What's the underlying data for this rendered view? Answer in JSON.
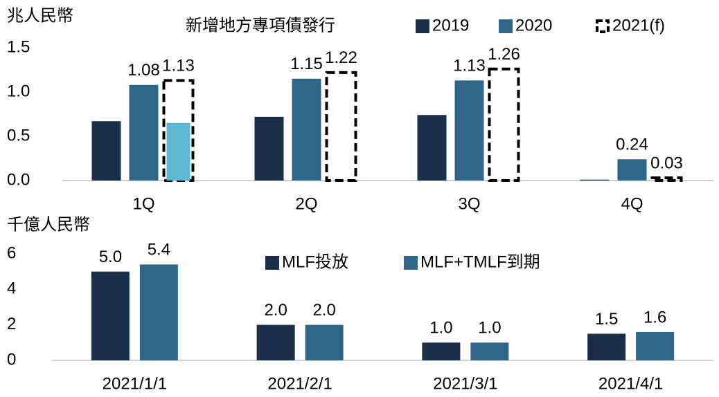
{
  "chart_data": [
    {
      "type": "bar",
      "unit_label": "兆人民幣",
      "title": "新增地方專項債發行",
      "categories": [
        "1Q",
        "2Q",
        "3Q",
        "4Q"
      ],
      "series": [
        {
          "name": "2019",
          "color": "#1b2f4b",
          "values": [
            0.67,
            0.72,
            0.74,
            0.01
          ]
        },
        {
          "name": "2020",
          "color": "#2e6689",
          "values": [
            1.08,
            1.15,
            1.13,
            0.24
          ],
          "show_labels": true
        },
        {
          "name": "2021(f)",
          "color": "#000000",
          "values": [
            1.13,
            1.22,
            1.26,
            0.03
          ],
          "show_labels": true,
          "dashed": true
        },
        {
          "color": "#5fb8d2",
          "values": [
            0.65,
            null,
            null,
            null
          ],
          "overlay_of": 2
        }
      ],
      "ylim": [
        0,
        1.5
      ],
      "yticks": [
        {
          "value": 0,
          "label": "0.0"
        },
        0.5,
        {
          "value": 1,
          "label": "1.0"
        },
        1.5
      ]
    },
    {
      "type": "bar",
      "unit_label": "千億人民幣",
      "categories": [
        "2021/1/1",
        "2021/2/1",
        "2021/3/1",
        "2021/4/1"
      ],
      "series": [
        {
          "name": "MLF投放",
          "color": "#1b2f4b",
          "values": [
            5.0,
            2.0,
            1.0,
            1.5
          ],
          "value_labels": [
            "5.0",
            "2.0",
            "1.0",
            "1.5"
          ],
          "show_labels": true
        },
        {
          "name": "MLF+TMLF到期",
          "color": "#2e6689",
          "values": [
            5.4,
            2.0,
            1.0,
            1.6
          ],
          "value_labels": [
            "5.4",
            "2.0",
            "1.0",
            "1.6"
          ],
          "show_labels": true
        }
      ],
      "ylim": [
        0,
        6
      ],
      "yticks": [
        0,
        2,
        4,
        6
      ]
    }
  ]
}
